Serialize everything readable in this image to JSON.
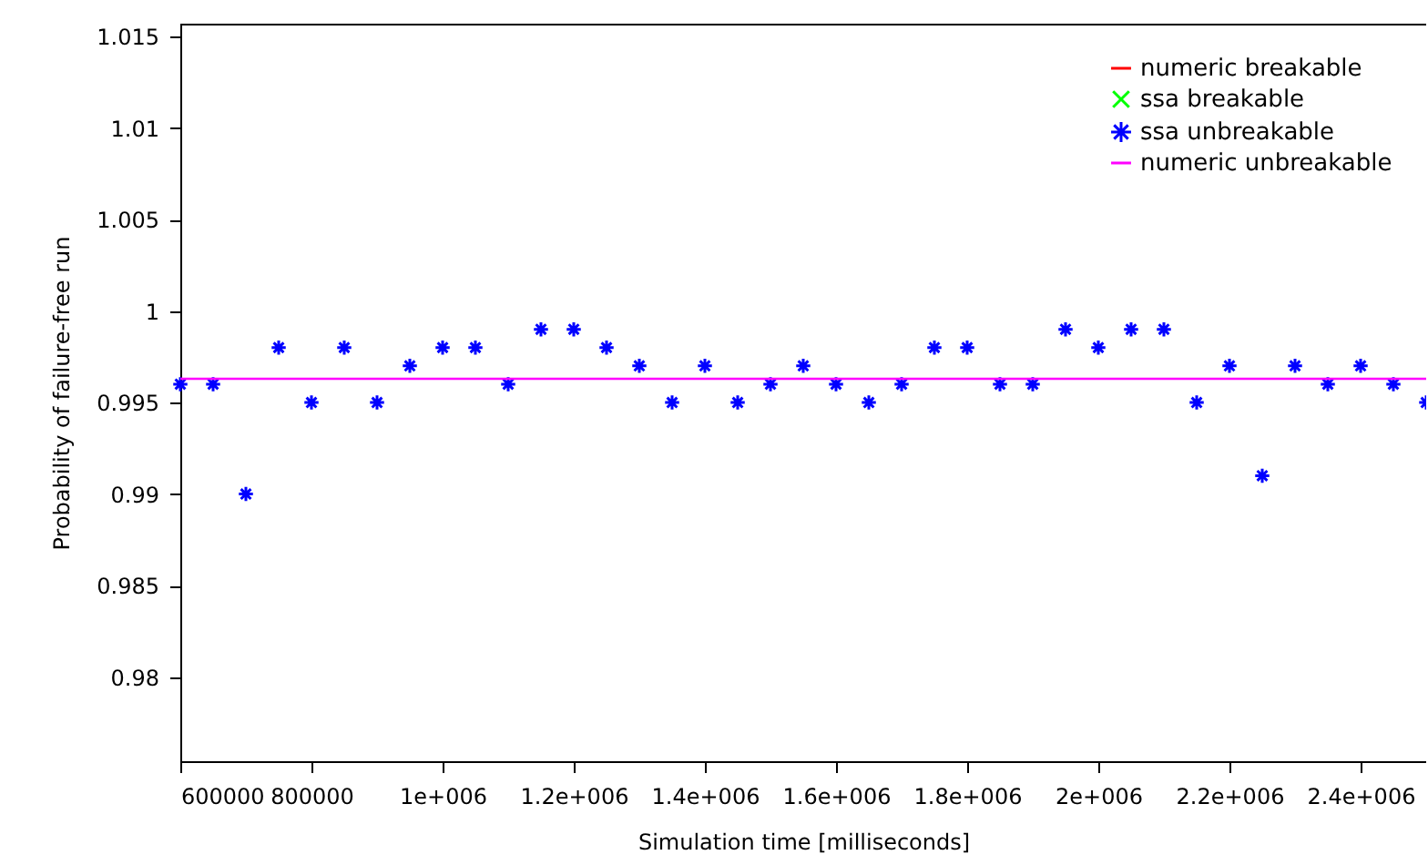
{
  "chart_data": {
    "type": "scatter",
    "xlabel": "Simulation time [milliseconds]",
    "ylabel": "Probability of failure-free run",
    "x": [
      600000,
      650000,
      700000,
      750000,
      800000,
      850000,
      900000,
      950000,
      1000000,
      1050000,
      1100000,
      1150000,
      1200000,
      1250000,
      1300000,
      1350000,
      1400000,
      1450000,
      1500000,
      1550000,
      1600000,
      1650000,
      1700000,
      1750000,
      1800000,
      1850000,
      1900000,
      1950000,
      2000000,
      2050000,
      2100000,
      2150000,
      2200000,
      2250000,
      2300000,
      2350000,
      2400000,
      2450000,
      2500000
    ],
    "series": [
      {
        "name": "numeric breakable",
        "type": "line",
        "color": "#ff0000",
        "values": [
          null,
          null,
          null,
          null,
          null,
          null,
          null,
          null,
          null,
          null,
          null,
          null,
          null,
          null,
          null,
          null,
          null,
          null,
          null,
          null,
          null,
          null,
          null,
          null,
          null,
          null,
          null,
          null,
          null,
          null,
          null,
          null,
          null,
          null,
          null,
          null,
          null,
          null,
          null
        ]
      },
      {
        "name": "ssa breakable",
        "color": "#00ff00",
        "values": [
          null,
          null,
          null,
          null,
          null,
          null,
          null,
          null,
          null,
          null,
          null,
          null,
          null,
          null,
          null,
          null,
          null,
          null,
          null,
          null,
          null,
          null,
          null,
          null,
          null,
          null,
          null,
          null,
          null,
          null,
          null,
          null,
          null,
          null,
          null,
          null,
          null,
          null,
          null
        ]
      },
      {
        "name": "ssa unbreakable",
        "marker": "cross",
        "color": "#0000ff",
        "values": [
          0.996,
          0.996,
          0.99,
          0.998,
          0.995,
          0.998,
          0.995,
          0.997,
          0.998,
          0.998,
          0.996,
          0.999,
          0.999,
          0.998,
          0.997,
          0.995,
          0.997,
          0.995,
          0.996,
          0.997,
          0.996,
          0.995,
          0.996,
          0.998,
          0.998,
          0.996,
          0.996,
          0.999,
          0.998,
          0.999,
          0.999,
          0.995,
          0.997,
          0.991,
          0.997,
          0.996,
          0.997,
          0.996,
          0.995
        ]
      },
      {
        "name": "numeric unbreakable",
        "type": "line",
        "color": "#ff00ff",
        "x": [
          600000,
          2500000
        ],
        "values": [
          0.9963,
          0.9963
        ]
      }
    ],
    "xlim": [
      600000,
      2500000
    ],
    "xticks": [
      600000,
      800000,
      {
        "value": 1000000,
        "label": "1e+006"
      },
      {
        "value": 1200000,
        "label": "1.2e+006"
      },
      {
        "value": 1400000,
        "label": "1.4e+006"
      },
      {
        "value": 1600000,
        "label": "1.6e+006"
      },
      {
        "value": 1800000,
        "label": "1.8e+006"
      },
      {
        "value": 2000000,
        "label": "2e+006"
      },
      {
        "value": 2200000,
        "label": "2.2e+006"
      },
      {
        "value": 2400000,
        "label": "2.4e+006"
      }
    ],
    "ylim": [
      0.9754,
      1.0157
    ],
    "yticks": [
      0.98,
      0.985,
      0.99,
      0.995,
      1,
      1.005,
      1.01,
      1.015
    ],
    "legend": "top right",
    "grid": false
  }
}
